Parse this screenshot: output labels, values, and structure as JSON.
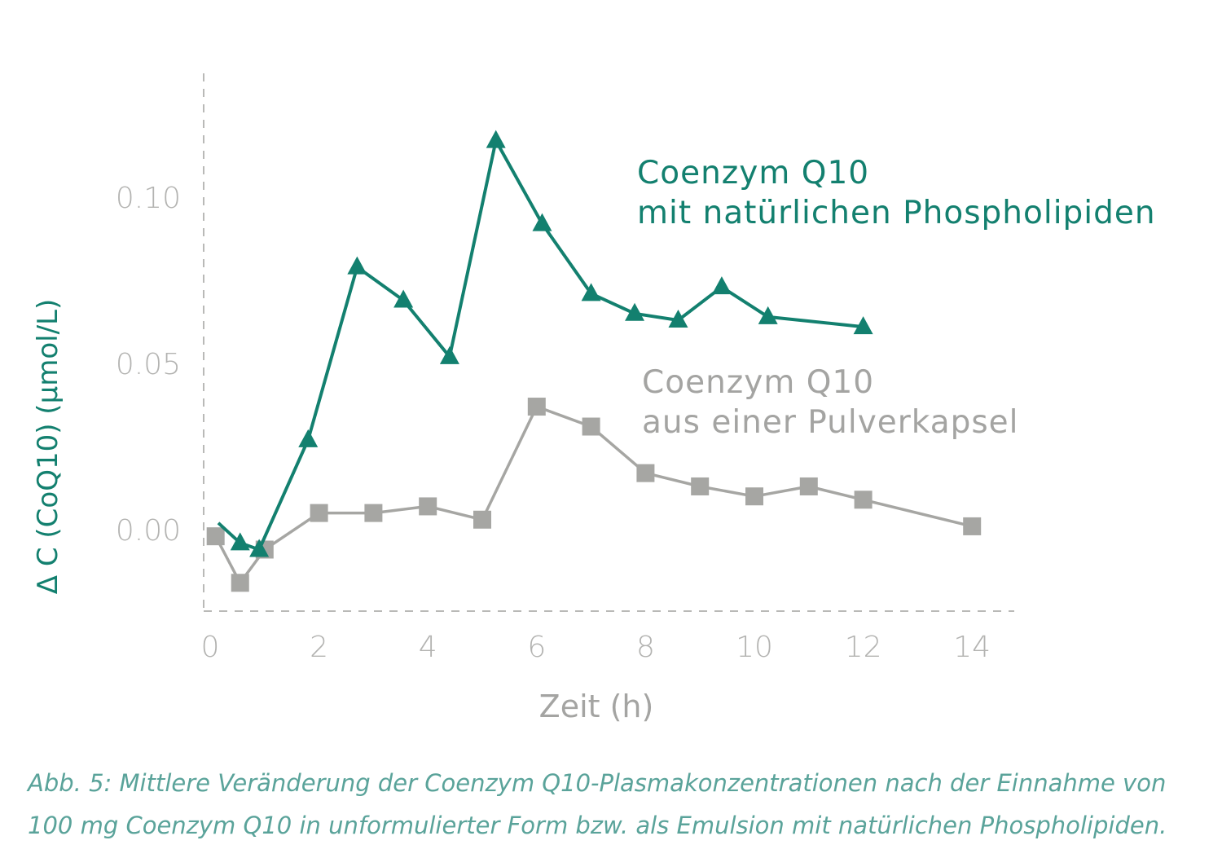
{
  "chart_data": {
    "type": "line",
    "xlabel": "Zeit (h)",
    "ylabel": "Δ C (CoQ10) (µmol/L)",
    "xlim": [
      0,
      15
    ],
    "ylim": [
      -0.025,
      0.14
    ],
    "x_ticks": [
      "0",
      "2",
      "4",
      "6",
      "8",
      "10",
      "12",
      "14"
    ],
    "y_ticks": [
      "0.00",
      "0.05",
      "0.10"
    ],
    "grid": false,
    "series": [
      {
        "name_lines": [
          "Coenzym Q10",
          "mit natürlichen Phospholipiden"
        ],
        "color": "#13806f",
        "marker": "triangle",
        "x": [
          0.15,
          0.55,
          0.9,
          1.8,
          2.7,
          3.55,
          4.4,
          5.25,
          6.1,
          7.0,
          7.8,
          8.6,
          9.4,
          10.25,
          12.0
        ],
        "y": [
          0.002,
          -0.004,
          -0.006,
          0.027,
          0.079,
          0.069,
          0.052,
          0.117,
          0.092,
          0.071,
          0.065,
          0.063,
          0.073,
          0.064,
          0.061
        ]
      },
      {
        "name_lines": [
          "Coenzym Q10",
          "aus einer Pulverkapsel"
        ],
        "color": "#a6a6a3",
        "marker": "square",
        "x": [
          0.1,
          0.55,
          1.0,
          2.0,
          3.0,
          4.0,
          5.0,
          6.0,
          7.0,
          8.0,
          9.0,
          10.0,
          11.0,
          12.0,
          14.0
        ],
        "y": [
          -0.002,
          -0.016,
          -0.006,
          0.005,
          0.005,
          0.007,
          0.003,
          0.037,
          0.031,
          0.017,
          0.013,
          0.01,
          0.013,
          0.009,
          0.001
        ]
      }
    ]
  },
  "caption": {
    "line1": "Abb. 5: Mittlere Veränderung der Coenzym Q10-Plasmakonzentrationen nach der Einnahme von",
    "line2": "100 mg Coenzym Q10 in unformulierter Form bzw. als Emulsion mit natürlichen Phospholipiden."
  }
}
